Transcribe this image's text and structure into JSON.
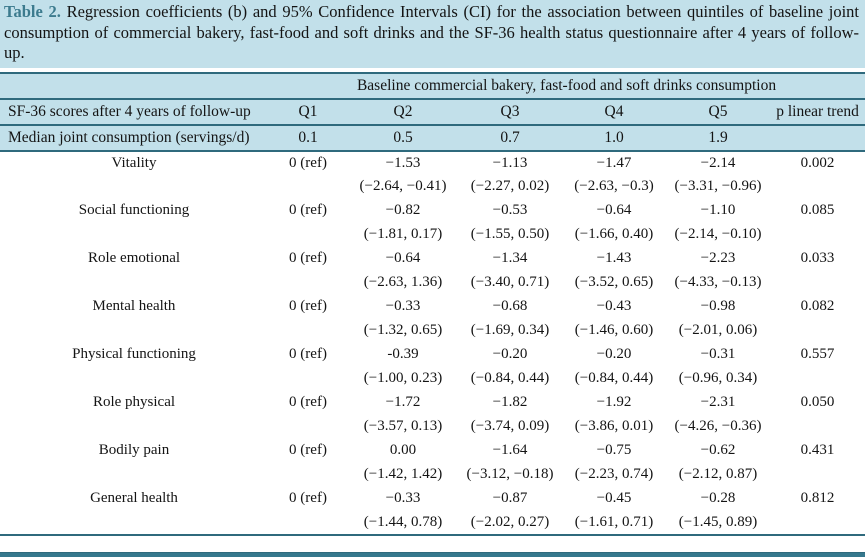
{
  "caption": {
    "label": "Table 2.",
    "text": "Regression coefficients (b) and 95% Confidence Intervals (CI) for the association between quintiles of baseline joint consumption of commercial bakery, fast-food and soft drinks and the SF-36 health status questionnaire after 4 years of follow-up."
  },
  "colors": {
    "caption_bg": "#c2e0ea",
    "caption_label": "#3c7b8e",
    "header_bg": "#c2e0ea",
    "rule_line": "#2f6a7d",
    "bottom_bar": "#35788d",
    "body_bg": "#ffffff",
    "text": "#141414"
  },
  "table": {
    "group_header": "Baseline commercial bakery, fast-food and soft drinks consumption",
    "columns": [
      "SF-36 scores after 4 years of follow-up",
      "Q1",
      "Q2",
      "Q3",
      "Q4",
      "Q5",
      "p linear trend"
    ],
    "median": {
      "label": "Median joint consumption (servings/d)",
      "values": [
        "0.1",
        "0.5",
        "0.7",
        "1.0",
        "1.9"
      ]
    },
    "rows": [
      {
        "label": "Vitality",
        "ref": "0 (ref)",
        "coefs": [
          "−1.53",
          "−1.13",
          "−1.47",
          "−2.14"
        ],
        "cis": [
          "(−2.64, −0.41)",
          "(−2.27, 0.02)",
          "(−2.63, −0.3)",
          "(−3.31, −0.96)"
        ],
        "p": "0.002"
      },
      {
        "label": "Social functioning",
        "ref": "0 (ref)",
        "coefs": [
          "−0.82",
          "−0.53",
          "−0.64",
          "−1.10"
        ],
        "cis": [
          "(−1.81, 0.17)",
          "(−1.55, 0.50)",
          "(−1.66, 0.40)",
          "(−2.14, −0.10)"
        ],
        "p": "0.085"
      },
      {
        "label": "Role emotional",
        "ref": "0 (ref)",
        "coefs": [
          "−0.64",
          "−1.34",
          "−1.43",
          "−2.23"
        ],
        "cis": [
          "(−2.63, 1.36)",
          "(−3.40, 0.71)",
          "(−3.52, 0.65)",
          "(−4.33, −0.13)"
        ],
        "p": "0.033"
      },
      {
        "label": "Mental health",
        "ref": "0 (ref)",
        "coefs": [
          "−0.33",
          "−0.68",
          "−0.43",
          "−0.98"
        ],
        "cis": [
          "(−1.32, 0.65)",
          "(−1.69, 0.34)",
          "(−1.46, 0.60)",
          "(−2.01, 0.06)"
        ],
        "p": "0.082"
      },
      {
        "label": "Physical functioning",
        "ref": "0 (ref)",
        "coefs": [
          "-0.39",
          "−0.20",
          "−0.20",
          "−0.31"
        ],
        "cis": [
          "(−1.00, 0.23)",
          "(−0.84, 0.44)",
          "(−0.84, 0.44)",
          "(−0.96, 0.34)"
        ],
        "p": "0.557"
      },
      {
        "label": "Role physical",
        "ref": "0 (ref)",
        "coefs": [
          "−1.72",
          "−1.82",
          "−1.92",
          "−2.31"
        ],
        "cis": [
          "(−3.57, 0.13)",
          "(−3.74, 0.09)",
          "(−3.86, 0.01)",
          "(−4.26, −0.36)"
        ],
        "p": "0.050"
      },
      {
        "label": "Bodily pain",
        "ref": "0 (ref)",
        "coefs": [
          "0.00",
          "−1.64",
          "−0.75",
          "−0.62"
        ],
        "cis": [
          "(−1.42, 1.42)",
          "(−3.12, −0.18)",
          "(−2.23, 0.74)",
          "(−2.12, 0.87)"
        ],
        "p": "0.431"
      },
      {
        "label": "General health",
        "ref": "0 (ref)",
        "coefs": [
          "−0.33",
          "−0.87",
          "−0.45",
          "−0.28"
        ],
        "cis": [
          "(−1.44, 0.78)",
          "(−2.02, 0.27)",
          "(−1.61, 0.71)",
          "(−1.45, 0.89)"
        ],
        "p": "0.812"
      }
    ]
  }
}
